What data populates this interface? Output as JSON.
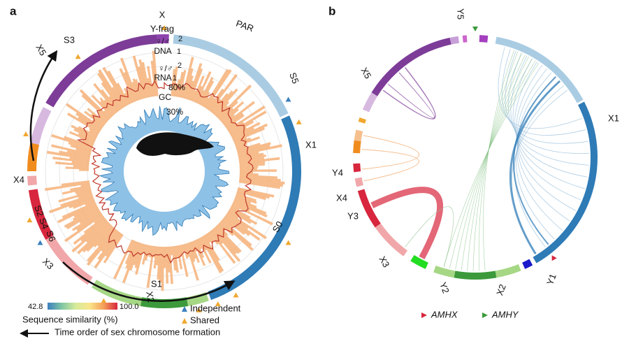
{
  "panel_a": {
    "label": "a",
    "segment_labels": [
      "X",
      "PAR",
      "S5",
      "X1",
      "S0",
      "S1",
      "X2",
      "X3",
      "S2",
      "S4",
      "S6",
      "X4",
      "X5",
      "S3"
    ],
    "track_labels": [
      "Y-frag",
      "♀/♂",
      "2",
      "DNA",
      "1",
      "♀/♂",
      "2",
      "RNA",
      "1",
      "80%",
      "GC",
      "30%"
    ],
    "legend": {
      "scale_min": "42.8",
      "scale_max": "100.0",
      "scale_title": "Sequence similarity (%)",
      "independent": "Independent",
      "shared": "Shared",
      "arrow_note": "Time order of sex chromosome formation"
    }
  },
  "panel_b": {
    "label": "b",
    "segment_labels": [
      "Y5",
      "X1",
      "Y1",
      "X2",
      "Y2",
      "X3",
      "Y3",
      "X4",
      "Y4",
      "X5"
    ],
    "legend": {
      "amhx": "AMHX",
      "amhy": "AMHY"
    }
  }
}
